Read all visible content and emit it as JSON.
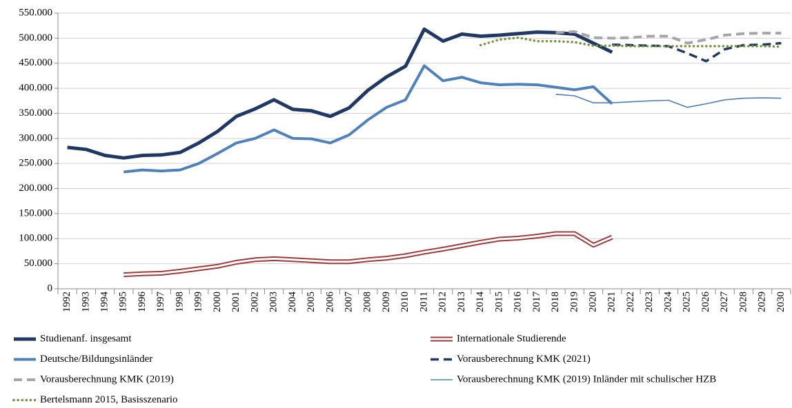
{
  "chart_data": {
    "type": "line",
    "categories": [
      "1992",
      "1993",
      "1994",
      "1995",
      "1996",
      "1997",
      "1998",
      "1999",
      "2000",
      "2001",
      "2002",
      "2003",
      "2004",
      "2005",
      "2006",
      "2007",
      "2008",
      "2009",
      "2010",
      "2011",
      "2012",
      "2013",
      "2014",
      "2015",
      "2016",
      "2017",
      "2018",
      "2019",
      "2020",
      "2021",
      "2022",
      "2023",
      "2024",
      "2025",
      "2026",
      "2027",
      "2028",
      "2029",
      "2030"
    ],
    "series": [
      {
        "name": "Studienanf. insgesamt",
        "color": "#1f3864",
        "style": "solid",
        "values": [
          282000,
          278000,
          266000,
          261000,
          266000,
          267000,
          272000,
          291000,
          314000,
          344000,
          359000,
          377000,
          358000,
          355000,
          344000,
          361000,
          396000,
          423000,
          444000,
          518000,
          494000,
          508000,
          504000,
          506000,
          509000,
          512000,
          511000,
          508000,
          490000,
          472000,
          null,
          null,
          null,
          null,
          null,
          null,
          null,
          null,
          null
        ]
      },
      {
        "name": "Internationale Studierende",
        "color": "#a0393a",
        "style": "double",
        "values": [
          null,
          null,
          null,
          28000,
          30000,
          31000,
          35000,
          40000,
          45000,
          53000,
          58000,
          60000,
          58000,
          56000,
          54000,
          54000,
          58000,
          61000,
          66000,
          73000,
          79000,
          86000,
          93000,
          99000,
          101000,
          105000,
          110000,
          110000,
          87000,
          103000,
          null,
          null,
          null,
          null,
          null,
          null,
          null,
          null,
          null
        ]
      },
      {
        "name": "Deutsche/Bildungsinländer",
        "color": "#4f81bd",
        "style": "solid",
        "values": [
          null,
          null,
          null,
          233000,
          237000,
          235000,
          237000,
          250000,
          270000,
          291000,
          300000,
          317000,
          300000,
          299000,
          291000,
          307000,
          337000,
          362000,
          377000,
          445000,
          415000,
          422000,
          411000,
          407000,
          408000,
          407000,
          402000,
          397000,
          403000,
          369000,
          null,
          null,
          null,
          null,
          null,
          null,
          null,
          null,
          null
        ]
      },
      {
        "name": "Vorausberechnung KMK (2021)",
        "color": "#1f3864",
        "style": "dashed",
        "values": [
          null,
          null,
          null,
          null,
          null,
          null,
          null,
          null,
          null,
          null,
          null,
          null,
          null,
          null,
          null,
          null,
          null,
          null,
          null,
          null,
          null,
          null,
          null,
          null,
          null,
          null,
          null,
          null,
          null,
          487000,
          486000,
          485000,
          484000,
          470000,
          454000,
          478000,
          486000,
          487000,
          490000
        ]
      },
      {
        "name": "Vorausberechnung KMK (2019)",
        "color": "#a6a6a6",
        "style": "dashed",
        "values": [
          null,
          null,
          null,
          null,
          null,
          null,
          null,
          null,
          null,
          null,
          null,
          null,
          null,
          null,
          null,
          null,
          null,
          null,
          null,
          null,
          null,
          null,
          null,
          null,
          null,
          null,
          511000,
          513000,
          501000,
          500000,
          501000,
          504000,
          504000,
          490000,
          497000,
          506000,
          509000,
          510000,
          510000
        ]
      },
      {
        "name": "Vorausberechnung KMK (2019) Inländer mit schulischer HZB",
        "color": "#4a7ebb",
        "style": "thin",
        "values": [
          null,
          null,
          null,
          null,
          null,
          null,
          null,
          null,
          null,
          null,
          null,
          null,
          null,
          null,
          null,
          null,
          null,
          null,
          null,
          null,
          null,
          null,
          null,
          null,
          null,
          null,
          388000,
          385000,
          371000,
          371000,
          373000,
          375000,
          376000,
          362000,
          369000,
          377000,
          380000,
          381000,
          380000
        ]
      },
      {
        "name": "Bertelsmann 2015, Basisszenario",
        "color": "#77933c",
        "style": "dotted",
        "values": [
          null,
          null,
          null,
          null,
          null,
          null,
          null,
          null,
          null,
          null,
          null,
          null,
          null,
          null,
          null,
          null,
          null,
          null,
          null,
          null,
          null,
          null,
          486000,
          497000,
          501000,
          494000,
          494000,
          492000,
          485000,
          485000,
          484000,
          484000,
          484000,
          484000,
          484000,
          484000,
          484000,
          484000,
          483000
        ]
      }
    ],
    "ylim": [
      0,
      550000
    ],
    "yticks": [
      0,
      {
        "value": 50000,
        "label": "50.000"
      },
      {
        "value": 100000,
        "label": "100.000"
      },
      {
        "value": 150000,
        "label": "150.000"
      },
      {
        "value": 200000,
        "label": "200.000"
      },
      {
        "value": 250000,
        "label": "250.000"
      },
      {
        "value": 300000,
        "label": "300.000"
      },
      {
        "value": 350000,
        "label": "350.000"
      },
      {
        "value": 400000,
        "label": "400.000"
      },
      {
        "value": 450000,
        "label": "450.000"
      },
      {
        "value": 500000,
        "label": "500.000"
      },
      {
        "value": 550000,
        "label": "550.000"
      }
    ],
    "grid": true
  }
}
